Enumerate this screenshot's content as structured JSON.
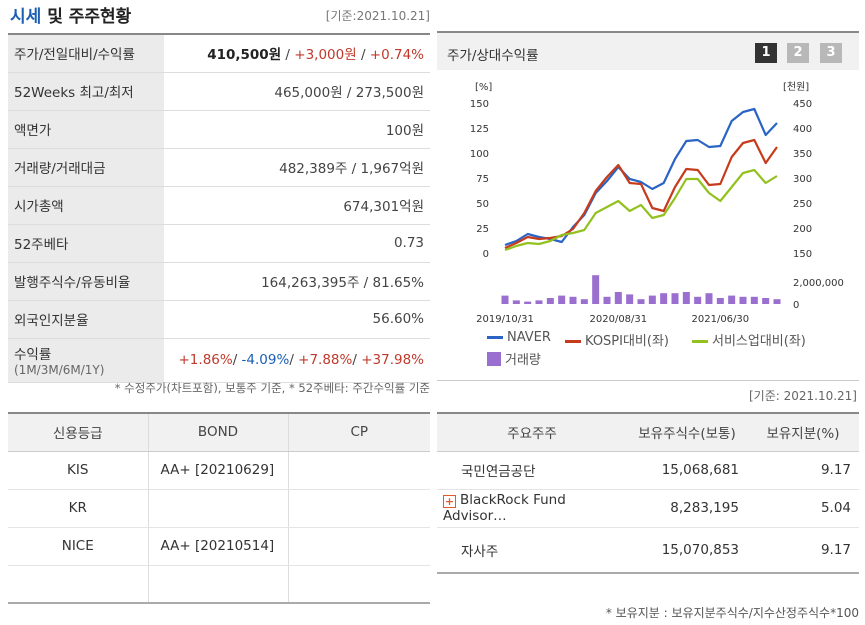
{
  "header": {
    "title_hl": "시세",
    "title_rest": " 및 주주현황",
    "date": "[기준:2021.10.21]"
  },
  "price_table": {
    "rows": [
      {
        "label": "주가/전일대비/수익률"
      },
      {
        "label": "52Weeks 최고/최저",
        "value": "465,000원 / 273,500원"
      },
      {
        "label": "액면가",
        "value": "100원"
      },
      {
        "label": "거래량/거래대금",
        "value": "482,389주 / 1,967억원"
      },
      {
        "label": "시가총액",
        "value": "674,301억원"
      },
      {
        "label": "52주베타",
        "value": "0.73"
      },
      {
        "label": "발행주식수/유동비율",
        "value": "164,263,395주 / 81.65%"
      },
      {
        "label": "외국인지분율",
        "value": "56.60%"
      },
      {
        "label": "수익률",
        "sub": "(1M/3M/6M/1Y)"
      }
    ],
    "price": "410,500원",
    "change": "+3,000원",
    "change_pct": "+0.74%",
    "sep": " / ",
    "returns": [
      "+1.86%",
      "-4.09%",
      "+7.88%",
      "+37.98%"
    ]
  },
  "note1": "* 수정주가(차트포함), 보통주 기준, * 52주베타: 주간수익률 기준",
  "chart_panel": {
    "title": "주가/상대수익률",
    "pages": [
      "1",
      "2",
      "3"
    ]
  },
  "chart_data": {
    "type": "line",
    "x": [
      "2019/10/31",
      "",
      "",
      "",
      "",
      "",
      "",
      "",
      "",
      "",
      "2020/08/31",
      "",
      "",
      "",
      "",
      "",
      "",
      "",
      "",
      "2021/06/30",
      "",
      "",
      "",
      "",
      ""
    ],
    "x_tick_labels": [
      "2019/10/31",
      "2020/08/31",
      "2021/06/30"
    ],
    "y_left_unit": "[%]",
    "y_left_ticks": [
      "150",
      "125",
      "100",
      "75",
      "50",
      "25",
      "0"
    ],
    "y_left_range": [
      0,
      150
    ],
    "y_right_unit": "[천원]",
    "y_right_ticks": [
      "450",
      "400",
      "350",
      "300",
      "250",
      "200",
      "150"
    ],
    "y_volume_ticks": [
      "2,000,000",
      "0"
    ],
    "volume_max": 3000000,
    "colors": {
      "naver": "#2a64c4",
      "kospi": "#c63b1c",
      "service": "#93c11f",
      "volume": "#9a6fd0"
    },
    "series": [
      {
        "name": "NAVER",
        "values": [
          8,
          12,
          19,
          16,
          14,
          11,
          26,
          38,
          60,
          72,
          86,
          74,
          71,
          64,
          70,
          94,
          112,
          113,
          106,
          107,
          132,
          141,
          144,
          118,
          130
        ]
      },
      {
        "name": "KOSPI대비(좌)",
        "values": [
          5,
          10,
          16,
          14,
          15,
          17,
          24,
          40,
          62,
          76,
          88,
          70,
          69,
          45,
          42,
          66,
          84,
          83,
          68,
          69,
          96,
          110,
          113,
          90,
          106
        ]
      },
      {
        "name": "서비스업대비(좌)",
        "values": [
          3,
          7,
          10,
          9,
          12,
          18,
          20,
          23,
          40,
          46,
          52,
          42,
          48,
          35,
          38,
          55,
          74,
          74,
          60,
          52,
          66,
          80,
          83,
          70,
          77
        ]
      }
    ],
    "volume": {
      "name": "거래량",
      "values": [
        700000,
        300000,
        200000,
        300000,
        500000,
        700000,
        600000,
        400000,
        2400000,
        600000,
        1000000,
        800000,
        400000,
        700000,
        900000,
        900000,
        1000000,
        600000,
        900000,
        500000,
        700000,
        600000,
        600000,
        500000,
        400000
      ]
    }
  },
  "legend": [
    {
      "label": "NAVER"
    },
    {
      "label": "KOSPI대비(좌)"
    },
    {
      "label": "서비스업대비(좌)"
    },
    {
      "label": "거래량"
    }
  ],
  "date2": "[기준: 2021.10.21]",
  "credit": {
    "headers": [
      "신용등급",
      "BOND",
      "CP"
    ],
    "rows": [
      [
        "KIS",
        "AA+  [20210629]",
        ""
      ],
      [
        "KR",
        "",
        ""
      ],
      [
        "NICE",
        "AA+  [20210514]",
        ""
      ],
      [
        "",
        "",
        ""
      ]
    ]
  },
  "holders": {
    "headers": [
      "주요주주",
      "보유주식수(보통)",
      "보유지분(%)"
    ],
    "rows": [
      [
        "국민연금공단",
        "15,068,681",
        "9.17"
      ],
      [
        "BlackRock Fund Advisor…",
        "8,283,195",
        "5.04"
      ],
      [
        "자사주",
        "15,070,853",
        "9.17"
      ]
    ]
  },
  "note2": "* 보유지분 : 보유지분주식수/지수산정주식수*100"
}
